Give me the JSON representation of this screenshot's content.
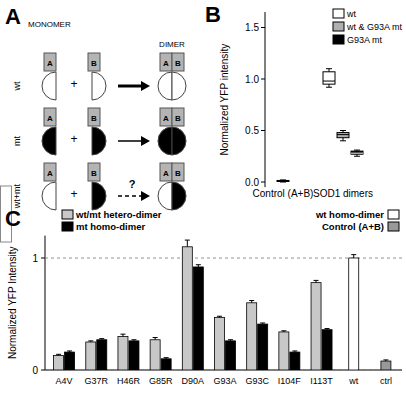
{
  "diagram": {
    "title": "A",
    "monomer_heading": "MONOMER",
    "dimer_heading": "DIMER",
    "unit_labels": [
      "A",
      "B"
    ],
    "plus": "+",
    "question": "?",
    "rows": [
      {
        "label": "wt",
        "colors": [
          "#ffffff",
          "#ffffff"
        ],
        "line_style": "thick"
      },
      {
        "label": "mt",
        "colors": [
          "#000000",
          "#000000"
        ],
        "line_style": "thin"
      },
      {
        "label": "wt+mt",
        "colors": [
          "#ffffff",
          "#000000"
        ],
        "line_style": "dashed"
      }
    ]
  },
  "chart_data": [
    {
      "type": "box",
      "title": "B",
      "y_label": "Normalized YFP intensity",
      "categories": [
        "Control (A+B)",
        "SOD1 dimers"
      ],
      "ylim": [
        -0.05,
        1.65
      ],
      "yticks": [
        {
          "value": 0,
          "label": "0.0"
        },
        {
          "value": 0.5,
          "label": "0.5"
        },
        {
          "value": 1,
          "label": "1.0"
        },
        {
          "value": 1.5,
          "label": "1.5"
        }
      ],
      "legend": "top-right",
      "series": [
        {
          "color": "#808080",
          "values": [
            {
              "min": 0,
              "q1": 0.005,
              "median": 0.01,
              "q3": 0.015,
              "max": 0.02
            },
            null
          ]
        },
        {
          "name": "wt",
          "color": "#ffffff",
          "values": [
            null,
            {
              "min": 0.92,
              "q1": 0.95,
              "median": 0.98,
              "q3": 1.07,
              "max": 1.1
            }
          ]
        },
        {
          "name": "wt & G93A mt",
          "color": "#b0b0b0",
          "values": [
            null,
            {
              "min": 0.4,
              "q1": 0.43,
              "median": 0.46,
              "q3": 0.48,
              "max": 0.5
            }
          ]
        },
        {
          "name": "G93A mt",
          "color": "#000000",
          "values": [
            null,
            {
              "min": 0.25,
              "q1": 0.27,
              "median": 0.28,
              "q3": 0.3,
              "max": 0.31
            }
          ]
        }
      ]
    },
    {
      "type": "bar",
      "title": "C",
      "y_label": "Normalized YFP Intensity",
      "categories": [
        "A4V",
        "G37R",
        "H46R",
        "G85R",
        "D90A",
        "G93A",
        "G93C",
        "I104F",
        "I113T",
        "wt",
        "ctrl"
      ],
      "ylim": [
        0,
        1.2
      ],
      "yticks": [
        0,
        1
      ],
      "grid": true,
      "legend": "top",
      "series": [
        {
          "name": "wt/mt hetero-dimer",
          "color": "#c8c8c8",
          "values": [
            0.13,
            0.25,
            0.3,
            0.27,
            1.1,
            0.47,
            0.6,
            0.34,
            0.78,
            null,
            null
          ],
          "errors": [
            0.01,
            0.01,
            0.02,
            0.02,
            0.06,
            0.01,
            0.02,
            0.01,
            0.02,
            null,
            null
          ]
        },
        {
          "name": "mt homo-dimer",
          "color": "#000000",
          "values": [
            0.16,
            0.27,
            0.26,
            0.1,
            0.92,
            0.26,
            0.41,
            0.16,
            0.36,
            null,
            null
          ],
          "errors": [
            0.01,
            0.01,
            0.01,
            0.01,
            0.02,
            0.01,
            0.01,
            0.01,
            0.01,
            null,
            null
          ]
        },
        {
          "name": "wt homo-dimer",
          "color": "#ffffff",
          "values": [
            null,
            null,
            null,
            null,
            null,
            null,
            null,
            null,
            null,
            1.0,
            null
          ],
          "errors": [
            null,
            null,
            null,
            null,
            null,
            null,
            null,
            null,
            null,
            0.03,
            null
          ]
        },
        {
          "name": "Control (A+B)",
          "color": "#999999",
          "values": [
            null,
            null,
            null,
            null,
            null,
            null,
            null,
            null,
            null,
            null,
            0.08
          ],
          "errors": [
            null,
            null,
            null,
            null,
            null,
            null,
            null,
            null,
            null,
            null,
            0.01
          ]
        }
      ]
    }
  ]
}
